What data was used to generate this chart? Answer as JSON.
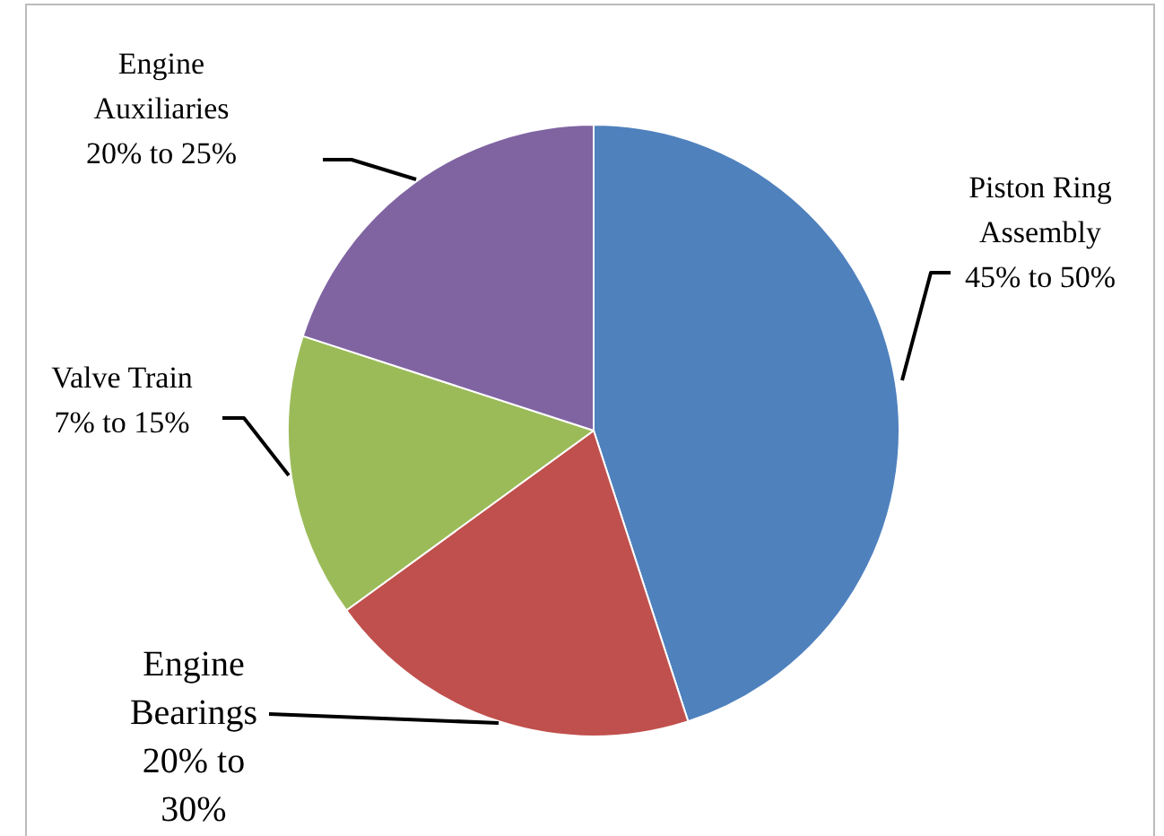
{
  "chart_data": {
    "type": "pie",
    "categories": [
      "Piston Ring Assembly",
      "Engine Bearings",
      "Valve Train",
      "Engine Auxiliaries"
    ],
    "values": [
      45,
      20,
      15,
      20
    ],
    "colors": [
      "#4f81bd",
      "#c0504d",
      "#9bbb59",
      "#8064a2"
    ],
    "value_labels": [
      "45% to 50%",
      "20% to 30%",
      "7% to 15%",
      "20% to 25%"
    ],
    "legend": false
  }
}
